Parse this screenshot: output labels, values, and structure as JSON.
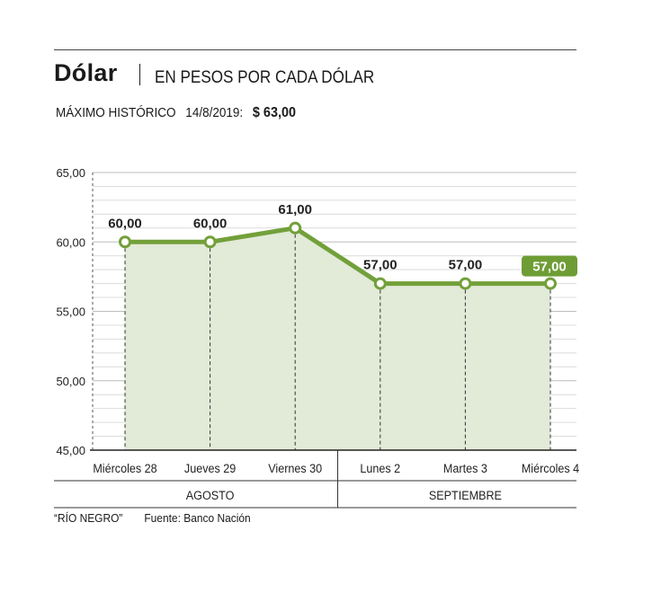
{
  "header": {
    "title": "Dólar",
    "subtitle": "EN PESOS POR CADA DÓLAR",
    "record_label": "MÁXIMO HISTÓRICO",
    "record_date": "14/8/2019:",
    "record_value": "$ 63,00"
  },
  "footer": {
    "credit": "“RÍO NEGRO”",
    "source": "Fuente: Banco Nación"
  },
  "colors": {
    "line": "#72a03a",
    "fill": "#e2ead8",
    "highlight": "#6e9d35"
  },
  "chart_data": {
    "type": "line",
    "title": "Dólar",
    "ylabel": "",
    "xlabel": "",
    "ylim": [
      45,
      65
    ],
    "y_ticks": [
      "45,00",
      "50,00",
      "55,00",
      "60,00",
      "65,00"
    ],
    "y_tick_values": [
      45,
      50,
      55,
      60,
      65
    ],
    "categories": [
      "Miércoles 28",
      "Jueves 29",
      "Viernes 30",
      "Lunes 2",
      "Martes 3",
      "Miércoles 4"
    ],
    "values": [
      60,
      60,
      61,
      57,
      57,
      57
    ],
    "value_labels": [
      "60,00",
      "60,00",
      "61,00",
      "57,00",
      "57,00",
      "57,00"
    ],
    "highlight_last": true,
    "groups": [
      {
        "label": "AGOSTO",
        "count": 3
      },
      {
        "label": "SEPTIEMBRE",
        "count": 3
      }
    ],
    "grid": true
  }
}
